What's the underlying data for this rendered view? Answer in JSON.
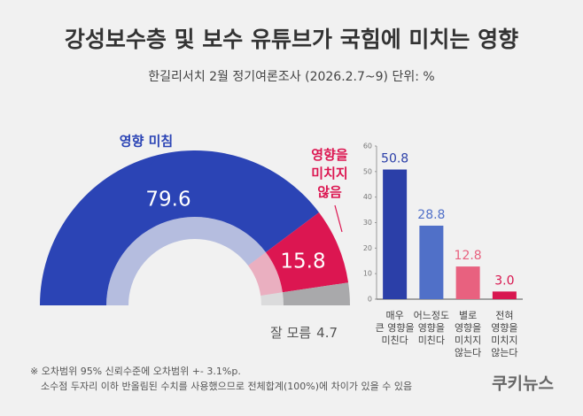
{
  "title": "강성보수층 및 보수 유튜브가 국힘에 미치는 영향",
  "subtitle": "한길리서치 2월 정기여론조사 (2026.2.7~9) 단위: %",
  "chart_data": [
    {
      "type": "pie",
      "categories": [
        "영향 미침",
        "영향을 미치지 않음",
        "잘 모름"
      ],
      "values": [
        79.6,
        15.8,
        4.7
      ],
      "colors": [
        "#2b44b5",
        "#dc1651",
        "#a9a9ab"
      ]
    },
    {
      "type": "bar",
      "categories": [
        [
          "매우",
          "큰 영향을",
          "미친다"
        ],
        [
          "어느정도",
          "영향을",
          "미친다"
        ],
        [
          "별로",
          "영향을",
          "미치지",
          "않는다"
        ],
        [
          "전혀",
          "영향을",
          "미치지",
          "않는다"
        ]
      ],
      "values": [
        50.8,
        28.8,
        12.8,
        3.0
      ],
      "value_labels": [
        "50.8",
        "28.8",
        "12.8",
        "3.0"
      ],
      "colors": [
        "#2b3fa8",
        "#5070c8",
        "#e8617f",
        "#d8164f"
      ],
      "ylim": [
        0,
        60
      ],
      "yticks": [
        0,
        10,
        20,
        30,
        40,
        50,
        60
      ]
    }
  ],
  "footnote": [
    "※ 오차범위 95% 신뢰수준에 오차범위 +- 3.1%p.",
    "소수점 두자리 이하 반올림된 수치를 사용했으므로 전체합계(100%)에 차이가 있을 수 있음"
  ],
  "logo": "쿠키뉴스"
}
